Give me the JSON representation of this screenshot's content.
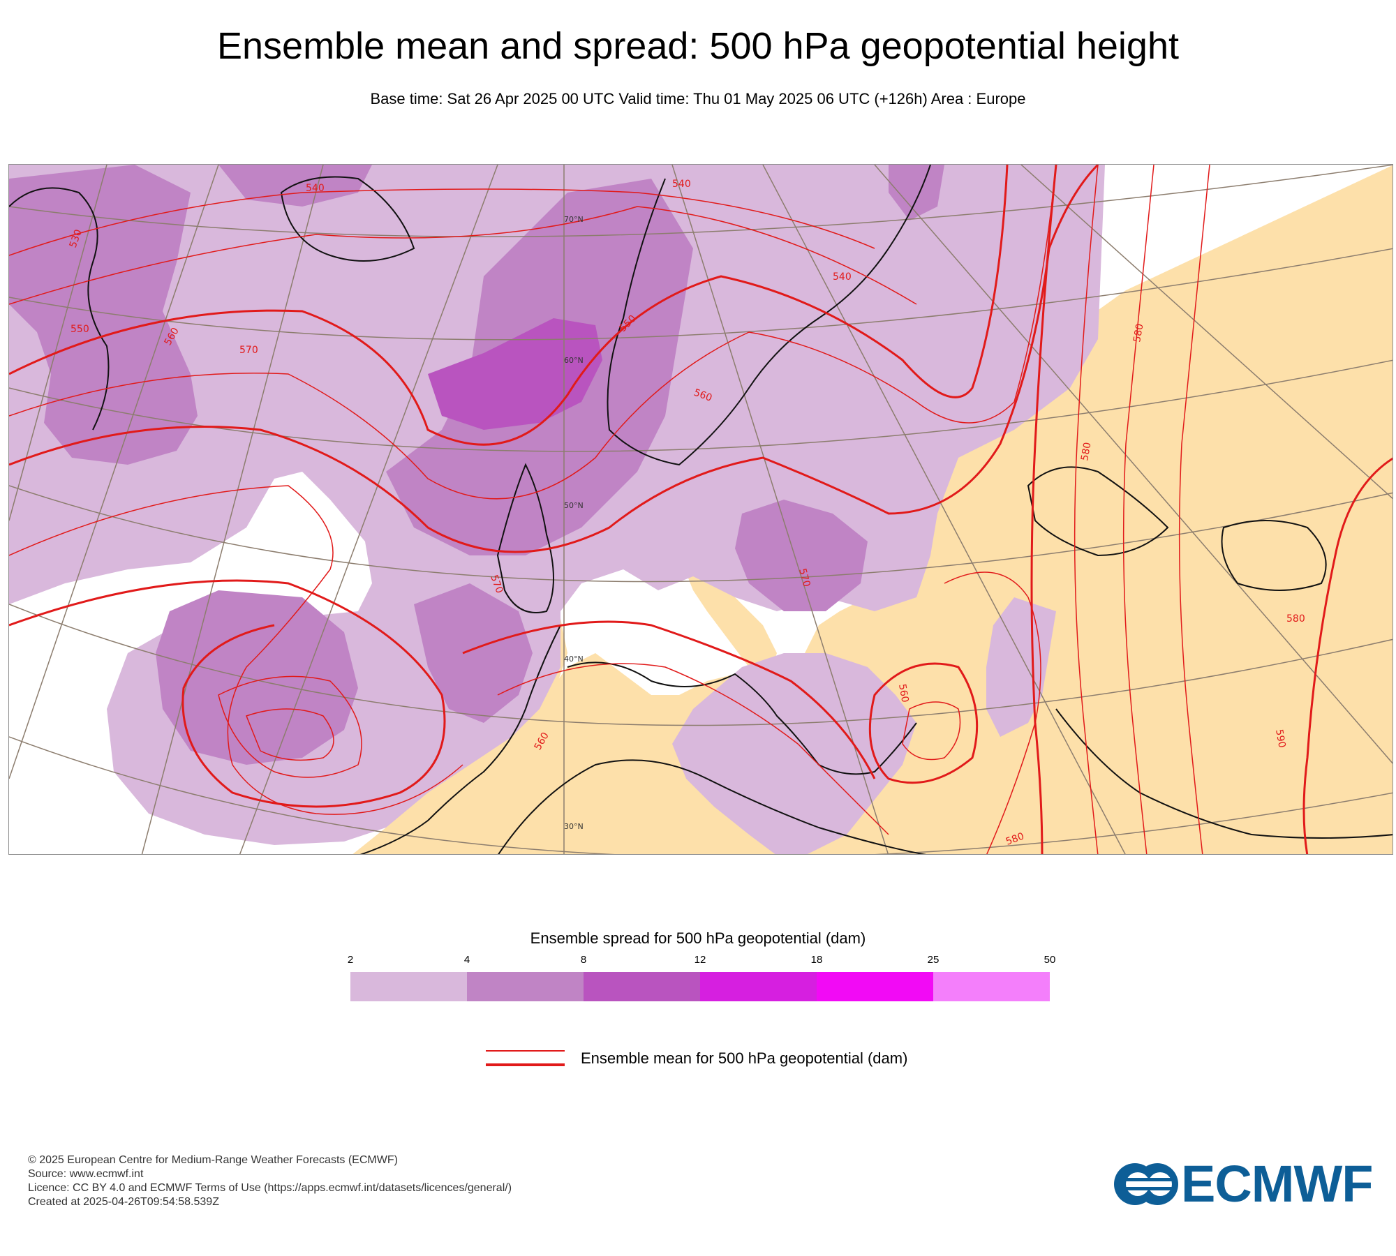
{
  "title": "Ensemble mean and spread: 500 hPa geopotential height",
  "subtitle": "Base time: Sat 26 Apr 2025 00 UTC Valid time: Thu 01 May 2025 06 UTC (+126h) Area : Europe",
  "map": {
    "land_color": "#fde0aa",
    "coast_color": "#111111",
    "graticule_color": "#8c7d6e",
    "contour_color": "#e11a1a",
    "latitude_labels": [
      "70°N",
      "60°N",
      "50°N",
      "40°N",
      "30°N"
    ],
    "contour_labels": [
      "540",
      "540",
      "540",
      "530",
      "550",
      "560",
      "570",
      "550",
      "560",
      "570",
      "560",
      "580",
      "580",
      "580",
      "570",
      "590",
      "560",
      "580"
    ]
  },
  "colorbar": {
    "title": "Ensemble spread for 500 hPa geopotential (dam)",
    "ticks": [
      "2",
      "4",
      "8",
      "12",
      "18",
      "25",
      "50"
    ],
    "colors": [
      "#d9b8dc",
      "#c084c5",
      "#b954bf",
      "#d61fe0",
      "#f20af5",
      "#f47ffb"
    ]
  },
  "contour_legend": {
    "label": "Ensemble mean for 500 hPa geopotential (dam)",
    "color": "#e11a1a"
  },
  "footer": {
    "copyright": "© 2025 European Centre for Medium-Range Weather Forecasts (ECMWF)",
    "source": "Source: www.ecmwf.int",
    "licence": "Licence: CC BY 4.0 and ECMWF Terms of Use (https://apps.ecmwf.int/datasets/licences/general/)",
    "created": "Created at 2025-04-26T09:54:58.539Z"
  },
  "logo": {
    "text": "ECMWF",
    "color": "#0d5e97"
  }
}
